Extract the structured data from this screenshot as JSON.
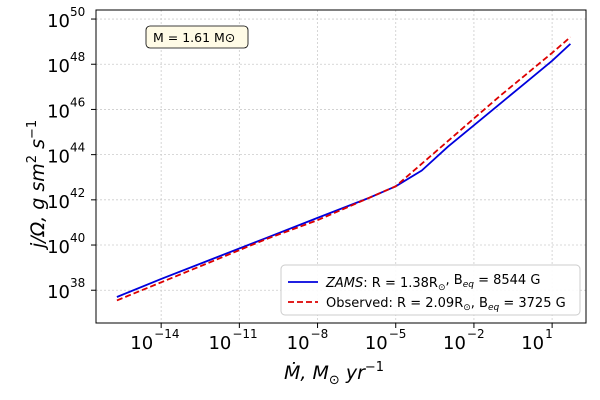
{
  "chart_data": {
    "type": "line",
    "annotation": "M = 1.61 M⊙",
    "xlabel": {
      "main": "Ṁ, M",
      "sub": "⊙",
      "rest": " yr",
      "sup": "−1"
    },
    "ylabel": {
      "main": "j/Ω, g sm",
      "sup1": "2",
      "mid": " s",
      "sup2": "−1"
    },
    "xscale": "log",
    "yscale": "log",
    "x_log_range": [
      -16.5,
      2.3
    ],
    "y_log_range": [
      36.55,
      50.4
    ],
    "x_ticks": [
      {
        "log": -14,
        "base": "10",
        "exp": "−14"
      },
      {
        "log": -11,
        "base": "10",
        "exp": "−11"
      },
      {
        "log": -8,
        "base": "10",
        "exp": "−8"
      },
      {
        "log": -5,
        "base": "10",
        "exp": "−5"
      },
      {
        "log": -2,
        "base": "10",
        "exp": "−2"
      },
      {
        "log": 1,
        "base": "10",
        "exp": "1"
      }
    ],
    "y_ticks": [
      {
        "log": 38,
        "base": "10",
        "exp": "38"
      },
      {
        "log": 40,
        "base": "10",
        "exp": "40"
      },
      {
        "log": 42,
        "base": "10",
        "exp": "42"
      },
      {
        "log": 44,
        "base": "10",
        "exp": "44"
      },
      {
        "log": 46,
        "base": "10",
        "exp": "46"
      },
      {
        "log": 48,
        "base": "10",
        "exp": "48"
      },
      {
        "log": 50,
        "base": "10",
        "exp": "50"
      }
    ],
    "grid": true,
    "legend_position": "lower-right",
    "series": [
      {
        "name": "ZAMS",
        "color": "#0000dd",
        "dash": "solid",
        "legend": {
          "head": "ZAMS",
          "r_text": ": R = 1.38R",
          "b_text": ", B",
          "b_sub": "eq",
          "tail": " = 8544 G"
        },
        "x_log": [
          -15.7,
          -14,
          -12,
          -10,
          -8,
          -6,
          -5,
          -4,
          -3,
          -2,
          -1,
          0,
          1,
          1.7
        ],
        "y_log": [
          37.7,
          38.5,
          39.4,
          40.3,
          41.2,
          42.1,
          42.6,
          43.3,
          44.35,
          45.3,
          46.25,
          47.2,
          48.15,
          48.9
        ]
      },
      {
        "name": "Observed",
        "color": "#dd0000",
        "dash": "dashed",
        "legend": {
          "head": "Observed",
          "r_text": ": R = 2.09R",
          "b_text": ", B",
          "b_sub": "eq",
          "tail": " = 3725 G"
        },
        "x_log": [
          -15.7,
          -14,
          -12,
          -10,
          -8,
          -6,
          -5,
          -4,
          -3,
          -2,
          -1,
          0,
          1,
          1.7
        ],
        "y_log": [
          37.55,
          38.35,
          39.3,
          40.25,
          41.1,
          42.1,
          42.6,
          43.6,
          44.6,
          45.6,
          46.6,
          47.55,
          48.5,
          49.2
        ]
      }
    ]
  }
}
